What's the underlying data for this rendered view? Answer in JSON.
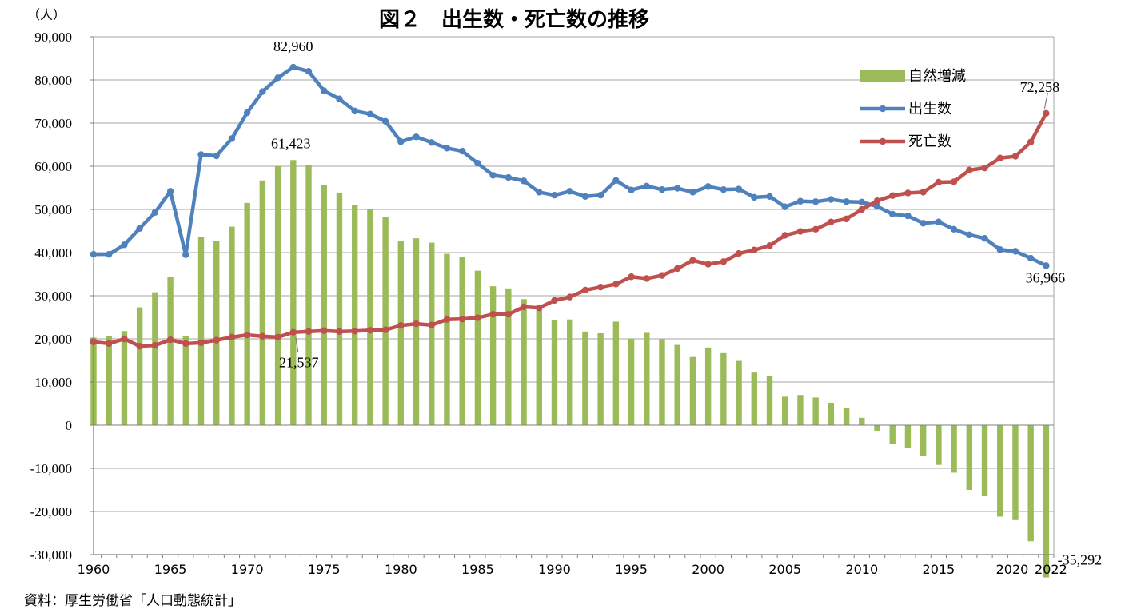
{
  "chart_data": {
    "type": "bar+line",
    "title": "図２　出生数・死亡数の推移",
    "unit_label": "（人）",
    "source": "資料：厚生労働省「人口動態統計」",
    "ylim": [
      -30000,
      90000
    ],
    "y_ticks": [
      90000,
      80000,
      70000,
      60000,
      50000,
      40000,
      30000,
      20000,
      10000,
      0,
      -10000,
      -20000,
      -30000
    ],
    "y_tick_labels": [
      "90,000",
      "80,000",
      "70,000",
      "60,000",
      "50,000",
      "40,000",
      "30,000",
      "20,000",
      "10,000",
      "0",
      "-10,000",
      "-20,000",
      "-30,000"
    ],
    "x_tick_labels": [
      "1960",
      "1965",
      "1970",
      "1975",
      "1980",
      "1985",
      "1990",
      "1995",
      "2000",
      "2005",
      "2010",
      "2015",
      "2020",
      "2022"
    ],
    "x_tick_years": [
      1960,
      1965,
      1970,
      1975,
      1980,
      1985,
      1990,
      1995,
      2000,
      2005,
      2010,
      2015,
      2020,
      2022
    ],
    "years": [
      1960,
      1961,
      1962,
      1963,
      1964,
      1965,
      1966,
      1967,
      1968,
      1969,
      1970,
      1971,
      1972,
      1973,
      1974,
      1975,
      1976,
      1977,
      1978,
      1979,
      1980,
      1981,
      1982,
      1983,
      1984,
      1985,
      1986,
      1987,
      1988,
      1989,
      1990,
      1991,
      1992,
      1993,
      1994,
      1995,
      1996,
      1997,
      1998,
      1999,
      2000,
      2001,
      2002,
      2003,
      2004,
      2005,
      2006,
      2007,
      2008,
      2009,
      2010,
      2011,
      2012,
      2013,
      2014,
      2015,
      2016,
      2017,
      2018,
      2019,
      2020,
      2021,
      2022
    ],
    "series": [
      {
        "name": "自然増減",
        "kind": "bar",
        "color": "#9bbb59",
        "values": [
          20300,
          20700,
          21800,
          27300,
          30800,
          34400,
          20600,
          43600,
          42700,
          46000,
          51500,
          56700,
          60100,
          61423,
          60300,
          55600,
          53900,
          51000,
          50100,
          48300,
          42600,
          43300,
          42300,
          39700,
          38900,
          35800,
          32200,
          31700,
          29200,
          26800,
          24400,
          24500,
          21700,
          21300,
          24000,
          20100,
          21400,
          19900,
          18600,
          15800,
          18000,
          16700,
          14900,
          12200,
          11400,
          6600,
          7000,
          6400,
          5200,
          4000,
          1700,
          -1300,
          -4300,
          -5300,
          -7200,
          -9200,
          -11000,
          -15000,
          -16300,
          -21200,
          -22000,
          -26900,
          -35292
        ]
      },
      {
        "name": "出生数",
        "kind": "line",
        "color": "#4f81bd",
        "values": [
          39600,
          39600,
          41800,
          45600,
          49300,
          54200,
          39500,
          62700,
          62400,
          66400,
          72400,
          77300,
          80500,
          82960,
          82000,
          77500,
          75600,
          72800,
          72100,
          70400,
          65700,
          66800,
          65500,
          64200,
          63500,
          60700,
          57900,
          57400,
          56600,
          54000,
          53300,
          54200,
          53000,
          53300,
          56700,
          54500,
          55400,
          54600,
          54900,
          54000,
          55300,
          54600,
          54700,
          52800,
          53000,
          50600,
          51900,
          51800,
          52300,
          51800,
          51700,
          50700,
          48900,
          48500,
          46800,
          47100,
          45400,
          44100,
          43300,
          40700,
          40300,
          38700,
          36966
        ]
      },
      {
        "name": "死亡数",
        "kind": "line",
        "color": "#c0504d",
        "values": [
          19300,
          18900,
          20000,
          18300,
          18500,
          19800,
          18900,
          19100,
          19700,
          20400,
          20900,
          20600,
          20400,
          21537,
          21700,
          21900,
          21700,
          21800,
          22000,
          22100,
          23100,
          23500,
          23200,
          24500,
          24600,
          24900,
          25700,
          25700,
          27400,
          27200,
          28900,
          29700,
          31300,
          32000,
          32700,
          34400,
          34000,
          34700,
          36300,
          38200,
          37300,
          37900,
          39800,
          40600,
          41600,
          44000,
          44900,
          45400,
          47100,
          47800,
          50000,
          52000,
          53200,
          53800,
          54000,
          56300,
          56400,
          59100,
          59600,
          61900,
          62300,
          65600,
          72258
        ]
      }
    ],
    "annotations": [
      {
        "label": "82,960",
        "year": 1973,
        "series": "出生数"
      },
      {
        "label": "61,423",
        "year": 1973,
        "series": "自然増減"
      },
      {
        "label": "21,537",
        "year": 1973,
        "series": "死亡数"
      },
      {
        "label": "72,258",
        "year": 2022,
        "series": "死亡数"
      },
      {
        "label": "36,966",
        "year": 2022,
        "series": "出生数"
      },
      {
        "label": "-35,292",
        "year": 2022,
        "series": "自然増減"
      }
    ],
    "legend": {
      "position": "top-right",
      "items": [
        "自然増減",
        "出生数",
        "死亡数"
      ]
    },
    "grid": true
  }
}
